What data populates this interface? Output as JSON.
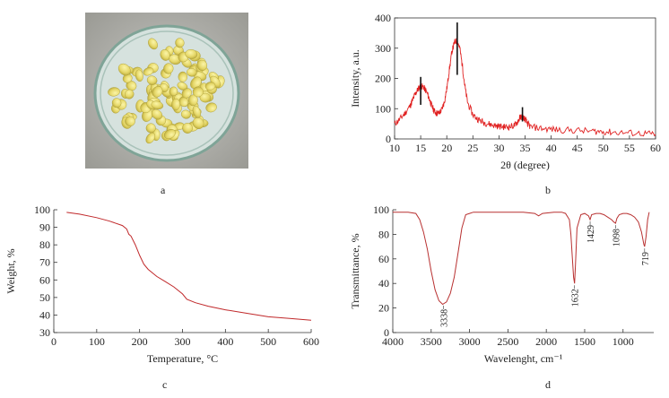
{
  "panel_labels": {
    "a": "a",
    "b": "b",
    "c": "c",
    "d": "d"
  },
  "photo": {
    "description_icon": "petri-dish-pellets-photo"
  },
  "chart_data": [
    {
      "id": "b",
      "type": "line",
      "xlabel": "2θ (degree)",
      "ylabel": "Intensity, a.u.",
      "xlim": [
        10,
        60
      ],
      "ylim": [
        0,
        400
      ],
      "xticks": [
        10,
        15,
        20,
        25,
        30,
        35,
        40,
        45,
        50,
        55,
        60
      ],
      "yticks": [
        0,
        100,
        200,
        300,
        400
      ],
      "color": "#e02020",
      "x": [
        10,
        11,
        12,
        13,
        13.5,
        14,
        14.5,
        15,
        15.5,
        16,
        16.5,
        17,
        17.5,
        18,
        18.5,
        19,
        19.5,
        20,
        20.5,
        21,
        21.5,
        22,
        22.5,
        23,
        23.5,
        24,
        25,
        26,
        27,
        28,
        29,
        30,
        31,
        32,
        33,
        33.5,
        34,
        34.5,
        35,
        35.5,
        36,
        38,
        40,
        42,
        45,
        48,
        50,
        52,
        55,
        58,
        60
      ],
      "y": [
        50,
        65,
        85,
        110,
        130,
        150,
        165,
        175,
        172,
        160,
        140,
        115,
        95,
        85,
        85,
        95,
        120,
        165,
        230,
        290,
        320,
        325,
        300,
        240,
        170,
        120,
        80,
        65,
        55,
        50,
        45,
        42,
        40,
        40,
        45,
        55,
        70,
        75,
        65,
        50,
        40,
        35,
        32,
        30,
        28,
        25,
        24,
        22,
        20,
        18,
        15
      ],
      "peaks": [
        {
          "x": 15,
          "y": 205
        },
        {
          "x": 22,
          "y": 385
        },
        {
          "x": 34.5,
          "y": 105
        }
      ]
    },
    {
      "id": "c",
      "type": "line",
      "xlabel": "Temperature, °C",
      "ylabel": "Weight, %",
      "xlim": [
        0,
        600
      ],
      "ylim": [
        30,
        100
      ],
      "xticks": [
        0,
        100,
        200,
        300,
        400,
        500,
        600
      ],
      "yticks": [
        30,
        40,
        50,
        60,
        70,
        80,
        90,
        100
      ],
      "color": "#c0282a",
      "x": [
        30,
        60,
        100,
        130,
        160,
        170,
        175,
        180,
        190,
        200,
        210,
        220,
        240,
        260,
        280,
        300,
        310,
        330,
        360,
        400,
        450,
        500,
        550,
        600
      ],
      "y": [
        98.5,
        97.5,
        95.5,
        93.5,
        91,
        89,
        86,
        85,
        80,
        74,
        69,
        66,
        62,
        59,
        56,
        52,
        49,
        47,
        45,
        43,
        41,
        39,
        38,
        37
      ]
    },
    {
      "id": "d",
      "type": "line",
      "xlabel": "Wavelenght, cm⁻¹",
      "ylabel": "Transmittance, %",
      "xlim": [
        4000,
        600
      ],
      "ylim": [
        0,
        100
      ],
      "xticks": [
        4000,
        3500,
        3000,
        2500,
        2000,
        1500,
        1000
      ],
      "yticks": [
        0,
        20,
        40,
        60,
        80,
        100
      ],
      "color": "#b83030",
      "x": [
        4000,
        3800,
        3700,
        3650,
        3600,
        3550,
        3500,
        3450,
        3400,
        3350,
        3300,
        3250,
        3200,
        3150,
        3100,
        3050,
        3000,
        2950,
        2900,
        2700,
        2500,
        2300,
        2150,
        2100,
        2050,
        1900,
        1800,
        1750,
        1700,
        1680,
        1660,
        1645,
        1632,
        1620,
        1600,
        1550,
        1500,
        1450,
        1429,
        1410,
        1350,
        1300,
        1250,
        1200,
        1150,
        1120,
        1098,
        1080,
        1050,
        1000,
        950,
        900,
        850,
        800,
        760,
        730,
        719,
        700,
        680,
        660
      ],
      "y": [
        98,
        98,
        97,
        92,
        82,
        68,
        50,
        35,
        26,
        23,
        25,
        32,
        45,
        65,
        85,
        96,
        97,
        98,
        98,
        98,
        98,
        98,
        97,
        95,
        97,
        98,
        98,
        97,
        92,
        80,
        60,
        45,
        40,
        55,
        85,
        96,
        97,
        95,
        92,
        96,
        97,
        97,
        96,
        94,
        92,
        90,
        89,
        93,
        96,
        97,
        97,
        96,
        94,
        90,
        82,
        72,
        70,
        78,
        92,
        98
      ],
      "annotations": [
        {
          "x": 3338,
          "label": "3338"
        },
        {
          "x": 1632,
          "label": "1632"
        },
        {
          "x": 1429,
          "label": "1429"
        },
        {
          "x": 1098,
          "label": "1098"
        },
        {
          "x": 719,
          "label": "719"
        }
      ]
    }
  ]
}
